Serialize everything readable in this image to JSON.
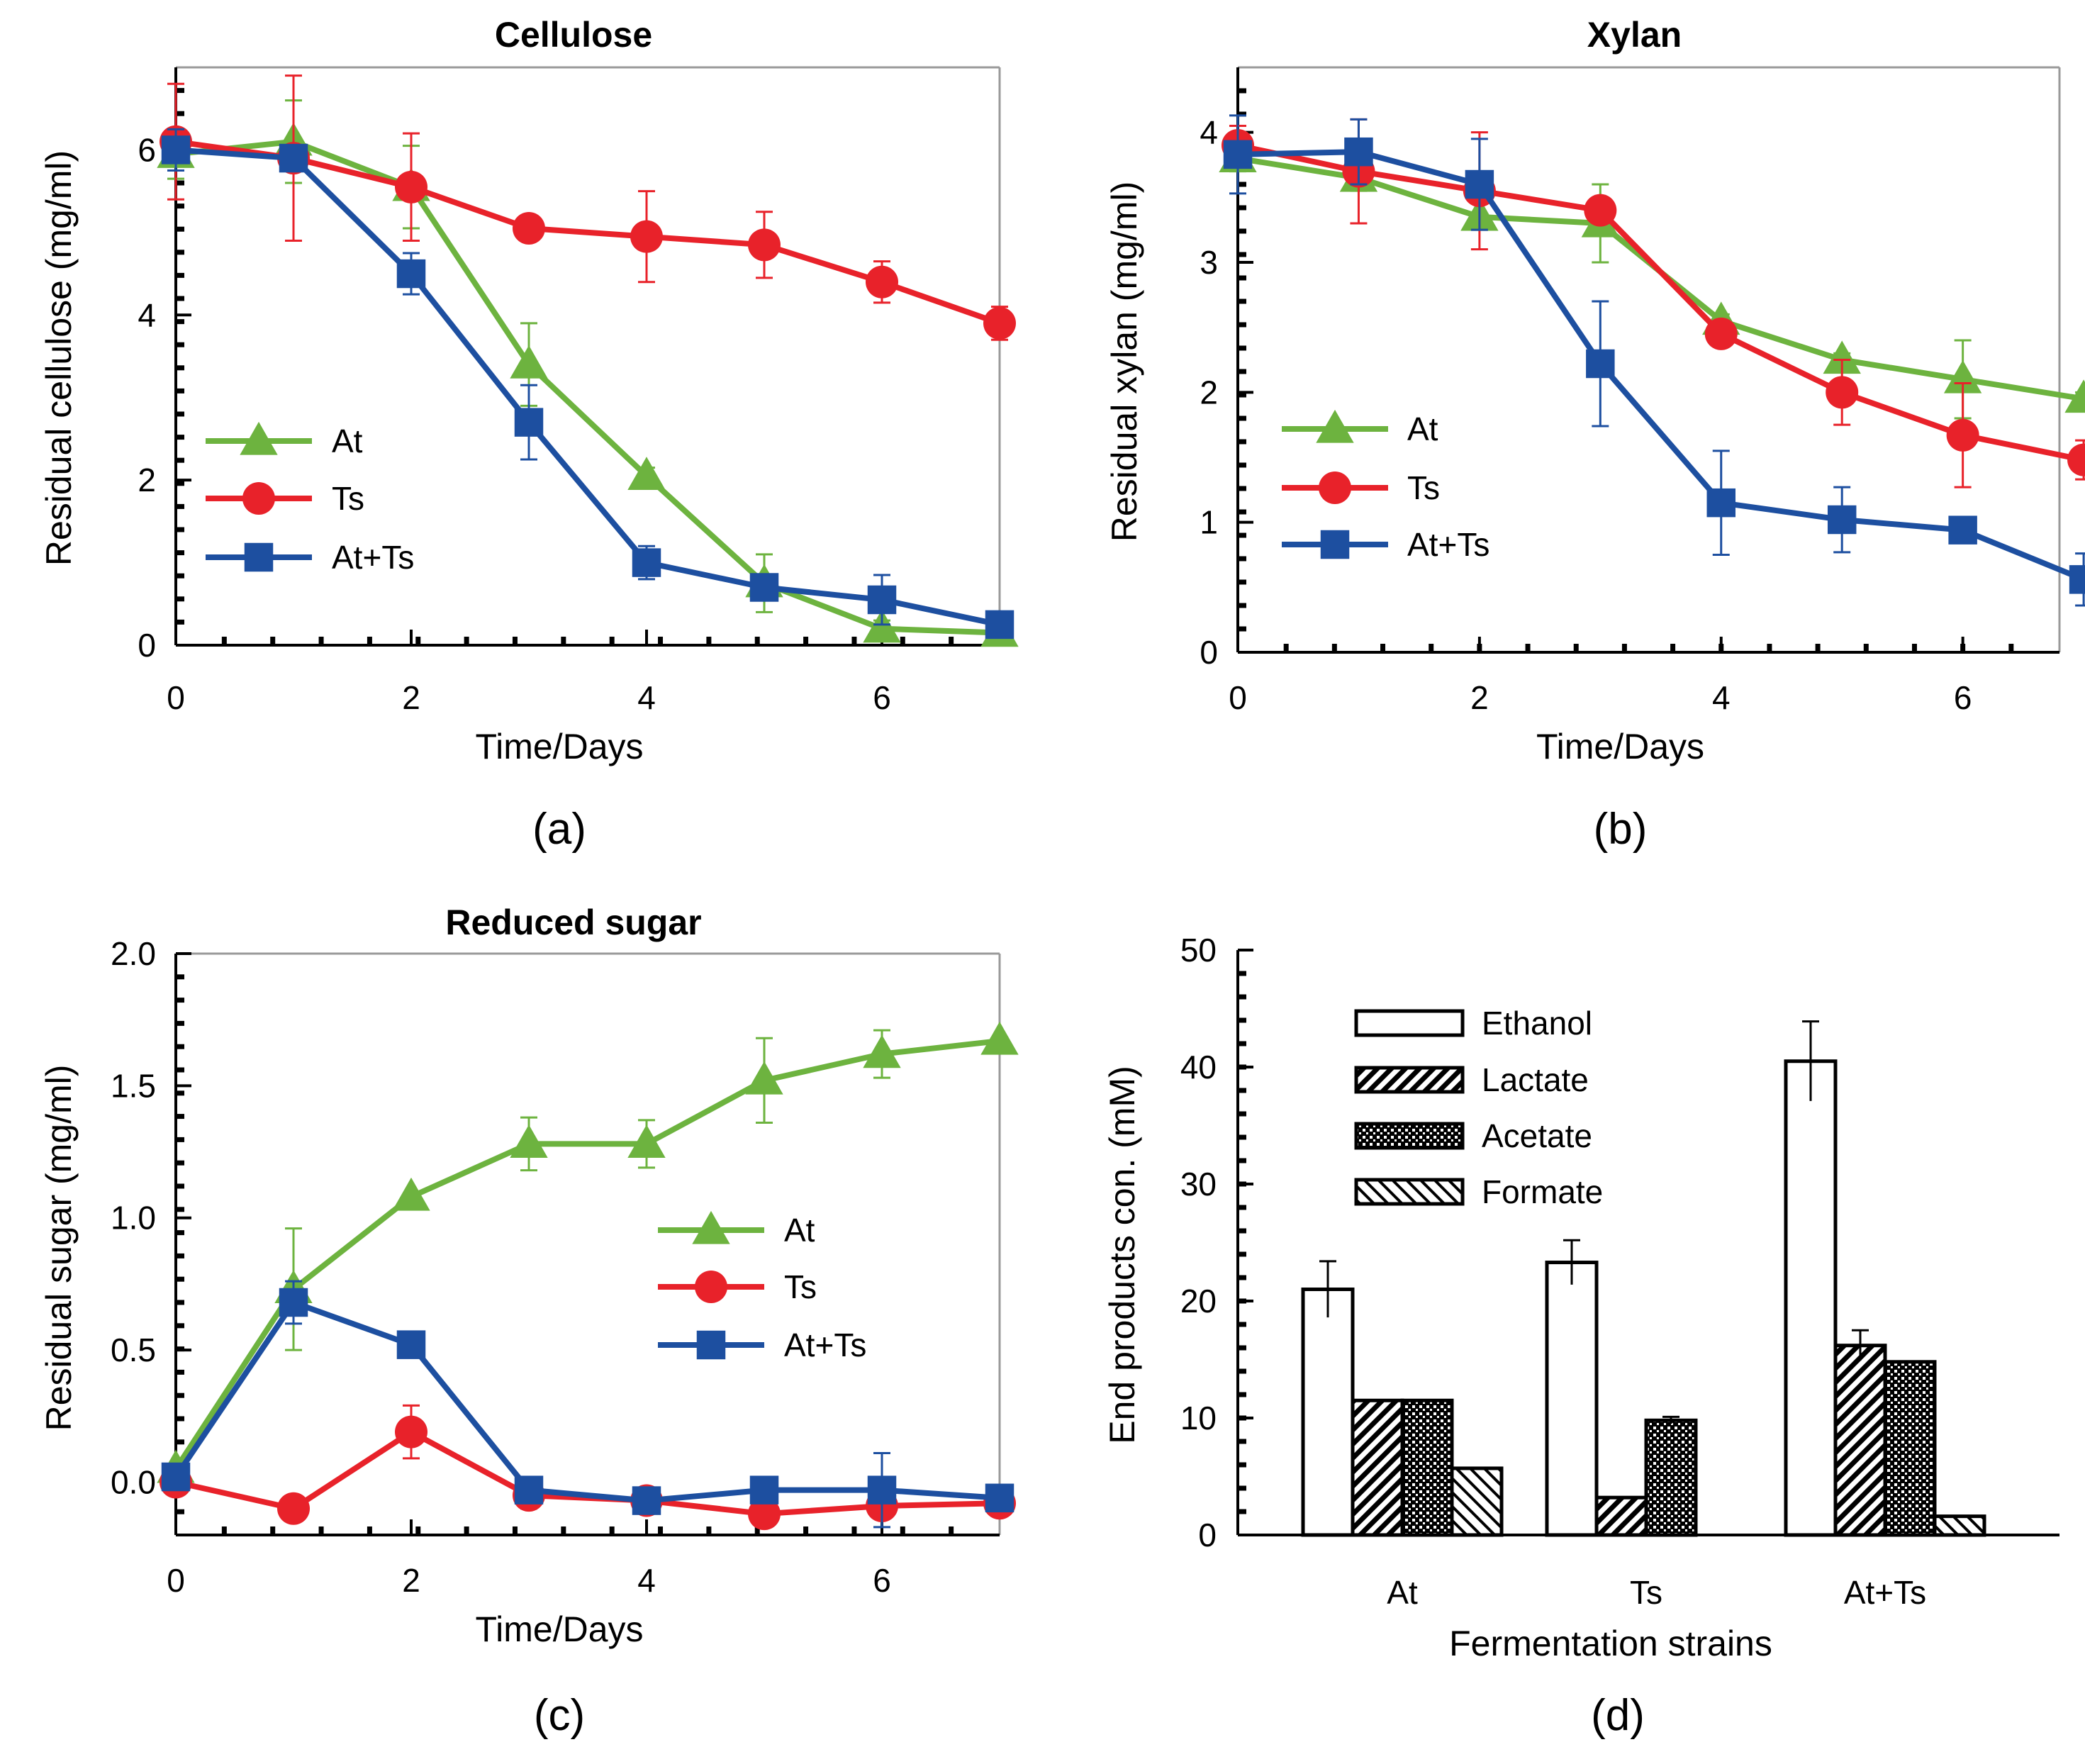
{
  "colors": {
    "At": "#6db33f",
    "Ts": "#e8222a",
    "At+Ts": "#1d4fa0",
    "axis": "#000000",
    "frame": "#999999"
  },
  "chart_data": [
    {
      "type": "line",
      "panel_label": "(a)",
      "title": "Cellulose",
      "xlabel": "Time/Days",
      "ylabel": "Residual cellulose (mg/ml)",
      "xlim": [
        0,
        7
      ],
      "ylim": [
        0,
        7
      ],
      "xticks": [
        "0",
        "2",
        "4",
        "6"
      ],
      "xtick_values": [
        0,
        2,
        4,
        6
      ],
      "yticks": [
        "0",
        "2",
        "4",
        "6"
      ],
      "ytick_values": [
        0,
        2,
        4,
        6
      ],
      "legend": [
        "At",
        "Ts",
        "At+Ts"
      ],
      "x": [
        0,
        1,
        2,
        3,
        4,
        5,
        6,
        7
      ],
      "series": [
        {
          "name": "At",
          "marker": "triangle",
          "values": [
            5.95,
            6.1,
            5.55,
            3.4,
            2.05,
            0.75,
            0.2,
            0.15
          ],
          "err": [
            0.3,
            0.5,
            0.5,
            0.5,
            0.1,
            0.35,
            0.1,
            0.05
          ]
        },
        {
          "name": "Ts",
          "marker": "circle",
          "values": [
            6.1,
            5.9,
            5.55,
            5.05,
            4.95,
            4.85,
            4.4,
            3.9
          ],
          "err": [
            0.7,
            1.0,
            0.65,
            0.1,
            0.55,
            0.4,
            0.25,
            0.2
          ]
        },
        {
          "name": "At+Ts",
          "marker": "square",
          "values": [
            6.0,
            5.9,
            4.5,
            2.7,
            1.0,
            0.7,
            0.55,
            0.25
          ],
          "err": [
            0.25,
            0.15,
            0.25,
            0.45,
            0.2,
            0.1,
            0.3,
            0.05
          ]
        }
      ]
    },
    {
      "type": "line",
      "panel_label": "(b)",
      "title": "Xylan",
      "xlabel": "Time/Days",
      "ylabel": "Residual xylan (mg/ml)",
      "xlim": [
        0,
        6.8
      ],
      "ylim": [
        0,
        4.5
      ],
      "xticks": [
        "0",
        "2",
        "4",
        "6"
      ],
      "xtick_values": [
        0,
        2,
        4,
        6
      ],
      "yticks": [
        "0",
        "1",
        "2",
        "3",
        "4"
      ],
      "ytick_values": [
        0,
        1,
        2,
        3,
        4
      ],
      "legend": [
        "At",
        "Ts",
        "At+Ts"
      ],
      "x": [
        0,
        1,
        2,
        3,
        4,
        5,
        6,
        7
      ],
      "series": [
        {
          "name": "At",
          "marker": "triangle",
          "values": [
            3.8,
            3.65,
            3.35,
            3.3,
            2.55,
            2.25,
            2.1,
            1.95
          ],
          "err": [
            0.1,
            0.1,
            0.1,
            0.3,
            0.05,
            0.05,
            0.3,
            0.05
          ]
        },
        {
          "name": "Ts",
          "marker": "circle",
          "values": [
            3.9,
            3.7,
            3.55,
            3.4,
            2.45,
            2.0,
            1.67,
            1.48
          ],
          "err": [
            0.15,
            0.4,
            0.45,
            0.05,
            0.05,
            0.25,
            0.4,
            0.15
          ]
        },
        {
          "name": "At+Ts",
          "marker": "square",
          "values": [
            3.83,
            3.85,
            3.6,
            2.22,
            1.15,
            1.02,
            0.94,
            0.56
          ],
          "err": [
            0.3,
            0.25,
            0.35,
            0.48,
            0.4,
            0.25,
            0.05,
            0.2
          ]
        }
      ]
    },
    {
      "type": "line",
      "panel_label": "(c)",
      "title": "Reduced sugar",
      "xlabel": "Time/Days",
      "ylabel": "Residual sugar (mg/ml)",
      "xlim": [
        0,
        7
      ],
      "ylim": [
        -0.2,
        2.0
      ],
      "xticks": [
        "0",
        "2",
        "4",
        "6"
      ],
      "xtick_values": [
        0,
        2,
        4,
        6
      ],
      "yticks": [
        "0.0",
        "0.5",
        "1.0",
        "1.5",
        "2.0"
      ],
      "ytick_values": [
        0,
        0.5,
        1.0,
        1.5,
        2.0
      ],
      "legend": [
        "At",
        "Ts",
        "At+Ts"
      ],
      "x": [
        0,
        1,
        2,
        3,
        4,
        5,
        6,
        7
      ],
      "series": [
        {
          "name": "At",
          "marker": "triangle",
          "values": [
            0.05,
            0.73,
            1.08,
            1.28,
            1.28,
            1.52,
            1.62,
            1.67
          ],
          "err": [
            0.0,
            0.23,
            0.0,
            0.1,
            0.09,
            0.16,
            0.09,
            0.0
          ]
        },
        {
          "name": "Ts",
          "marker": "circle",
          "values": [
            0.0,
            -0.1,
            0.19,
            -0.05,
            -0.07,
            -0.12,
            -0.09,
            -0.08
          ],
          "err": [
            0.0,
            0.0,
            0.1,
            0.05,
            0.0,
            0.0,
            0.0,
            0.0
          ]
        },
        {
          "name": "At+Ts",
          "marker": "square",
          "values": [
            0.02,
            0.68,
            0.52,
            -0.03,
            -0.07,
            -0.03,
            -0.03,
            -0.06
          ],
          "err": [
            0.0,
            0.08,
            0.0,
            0.0,
            0.0,
            0.0,
            0.14,
            0.0
          ]
        }
      ]
    },
    {
      "type": "bar",
      "panel_label": "(d)",
      "title": "",
      "xlabel": "Fermentation strains",
      "ylabel": "End products con. (mM)",
      "ylim": [
        0,
        50
      ],
      "yticks": [
        "0",
        "10",
        "20",
        "30",
        "40",
        "50"
      ],
      "ytick_values": [
        0,
        10,
        20,
        30,
        40,
        50
      ],
      "categories": [
        "At",
        "Ts",
        "At+Ts"
      ],
      "legend": [
        "Ethanol",
        "Lactate",
        "Acetate",
        "Formate"
      ],
      "series": [
        {
          "name": "Ethanol",
          "pattern": "open",
          "values": [
            21.0,
            23.3,
            40.5
          ],
          "err": [
            2.4,
            1.9,
            3.4
          ]
        },
        {
          "name": "Lactate",
          "pattern": "diagonal",
          "values": [
            11.5,
            3.2,
            16.2
          ],
          "err": [
            0.0,
            0.0,
            1.3
          ]
        },
        {
          "name": "Acetate",
          "pattern": "crosshatch",
          "values": [
            11.5,
            9.8,
            14.8
          ],
          "err": [
            0.0,
            0.3,
            0.0
          ]
        },
        {
          "name": "Formate",
          "pattern": "reverse-diagonal",
          "values": [
            5.7,
            0.0,
            1.6
          ],
          "err": [
            0.0,
            0.0,
            0.0
          ]
        }
      ]
    }
  ]
}
